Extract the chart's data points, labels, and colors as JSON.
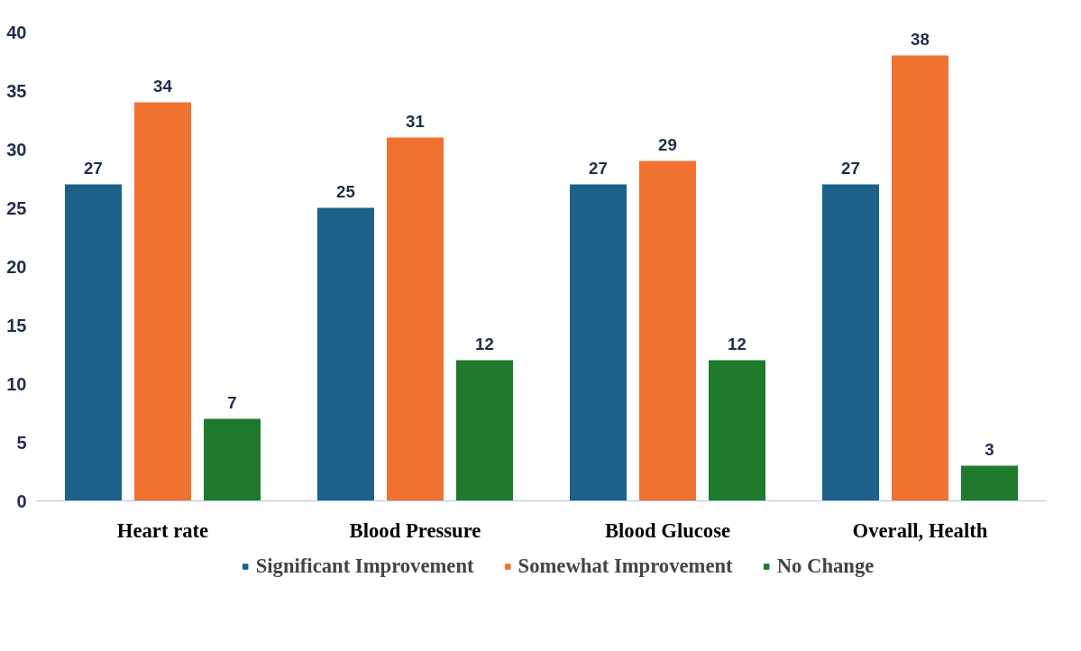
{
  "chart_data": {
    "type": "bar",
    "categories": [
      "Heart rate",
      "Blood Pressure",
      "Blood Glucose",
      "Overall, Health"
    ],
    "series": [
      {
        "name": "Significant Improvement",
        "color": "#1c6189",
        "values": [
          27,
          25,
          27,
          27
        ]
      },
      {
        "name": "Somewhat Improvement",
        "color": "#f07230",
        "values": [
          34,
          31,
          29,
          38
        ]
      },
      {
        "name": "No Change",
        "color": "#1f7a2c",
        "values": [
          7,
          12,
          12,
          3
        ]
      }
    ],
    "ylim": [
      0,
      40
    ],
    "yticks": [
      0,
      5,
      10,
      15,
      20,
      25,
      30,
      35,
      40
    ],
    "grid": false,
    "legend": "bottom",
    "data_labels": true
  }
}
